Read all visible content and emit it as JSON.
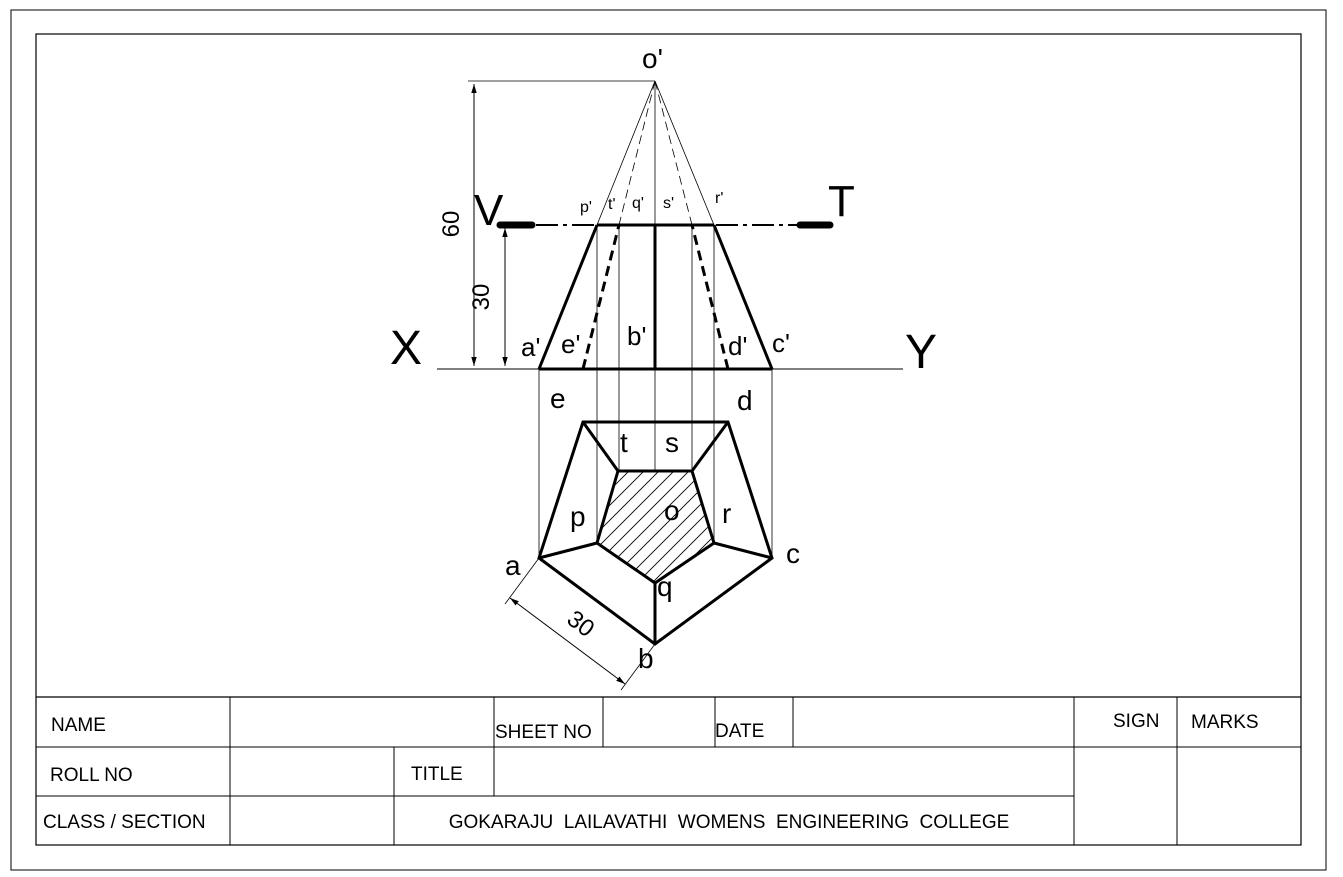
{
  "drawing": {
    "front_view": {
      "apex": "o'",
      "base_points": [
        "a'",
        "e'",
        "b'",
        "d'",
        "c'"
      ],
      "section_points": [
        "p'",
        "t'",
        "q'",
        "s'",
        "r'"
      ]
    },
    "top_view": {
      "base_points": [
        "a",
        "b",
        "c",
        "d",
        "e"
      ],
      "section_points": [
        "p",
        "q",
        "r",
        "s",
        "t"
      ],
      "center": "o"
    },
    "section_plane": {
      "label_left": "V",
      "label_right": "T"
    },
    "reference_line": {
      "label_left": "X",
      "label_right": "Y"
    },
    "dimensions": {
      "height": "60",
      "section_height": "30",
      "base_edge": "30"
    }
  },
  "title_block": {
    "name_label": "NAME",
    "sheet_no_label": "SHEET NO",
    "date_label": "DATE",
    "sign_label": "SIGN",
    "marks_label": "MARKS",
    "roll_no_label": "ROLL NO",
    "title_label": "TITLE",
    "class_section_label": "CLASS / SECTION",
    "college_name": "GOKARAJU  LAILAVATHI  WOMENS  ENGINEERING  COLLEGE"
  }
}
